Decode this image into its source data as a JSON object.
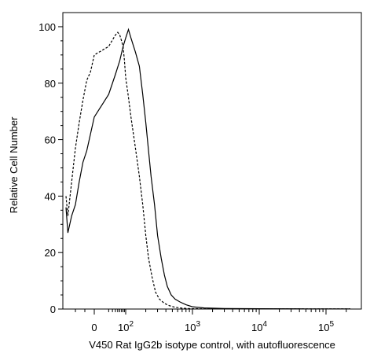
{
  "chart_data": {
    "type": "line",
    "title": "",
    "xlabel": "V450 Rat IgG2b isotype control, with autofluorescence",
    "ylabel": "Relative Cell Number",
    "x_scale": "biexponential",
    "ylim": [
      0,
      105
    ],
    "yticks": [
      0,
      20,
      40,
      60,
      80,
      100
    ],
    "xticks": [
      {
        "value": 0,
        "label": "0"
      },
      {
        "value": 100,
        "label": "10^2"
      },
      {
        "value": 1000,
        "label": "10^3"
      },
      {
        "value": 10000,
        "label": "10^4"
      },
      {
        "value": 100000,
        "label": "10^5"
      }
    ],
    "grid": false,
    "legend": "none",
    "series": [
      {
        "style": "solid",
        "color": "#000000",
        "x": [
          -150,
          -140,
          -120,
          -100,
          -80,
          -60,
          -40,
          -20,
          0,
          20,
          40,
          60,
          80,
          100,
          110,
          120,
          140,
          160,
          180,
          200,
          220,
          240,
          270,
          300,
          340,
          380,
          420,
          480,
          550,
          650,
          800,
          1000,
          1500,
          3000,
          10000,
          50000,
          150000,
          230000
        ],
        "y": [
          36,
          27,
          33,
          37,
          45,
          52,
          56,
          62,
          68,
          76,
          83,
          88,
          93,
          96,
          99,
          96,
          91,
          86,
          76,
          66,
          56,
          47,
          37,
          26,
          18,
          12,
          8,
          5,
          3.5,
          2.5,
          1.5,
          0.8,
          0.4,
          0.2,
          0.1,
          0.05,
          0.05,
          0.05
        ]
      },
      {
        "style": "dashed",
        "color": "#000000",
        "x": [
          -150,
          -140,
          -120,
          -100,
          -80,
          -60,
          -40,
          -20,
          0,
          20,
          40,
          50,
          60,
          70,
          80,
          90,
          100,
          110,
          120,
          140,
          160,
          180,
          200,
          220,
          250,
          280,
          320,
          380,
          450,
          550,
          700,
          1000,
          2000,
          10000,
          230000
        ],
        "y": [
          40,
          33,
          45,
          57,
          66,
          74,
          81,
          84,
          90,
          93,
          97,
          98,
          97,
          95,
          93,
          88,
          82,
          75,
          68,
          57,
          47,
          37,
          26,
          18,
          11,
          6,
          3.5,
          2,
          1.2,
          0.6,
          0.3,
          0.1,
          0.05,
          0.05,
          0.05
        ]
      }
    ]
  }
}
